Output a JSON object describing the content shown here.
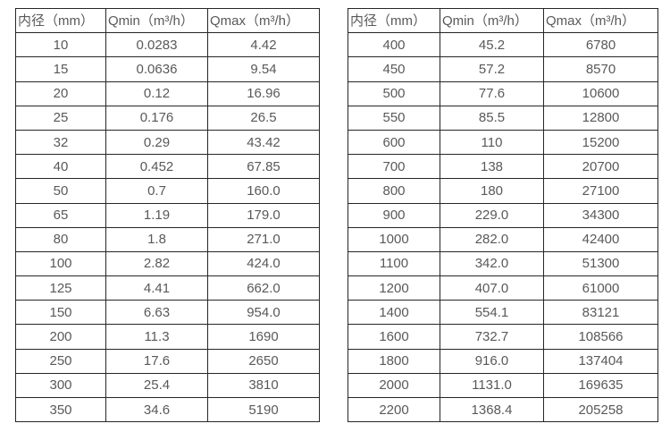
{
  "colors": {
    "text": "#595959",
    "border": "#262626",
    "background": "#ffffff"
  },
  "table_left": {
    "headers": [
      "内径（mm）",
      "Qmin（m³/h）",
      "Qmax（m³/h）"
    ],
    "rows": [
      [
        "10",
        "0.0283",
        "4.42"
      ],
      [
        "15",
        "0.0636",
        "9.54"
      ],
      [
        "20",
        "0.12",
        "16.96"
      ],
      [
        "25",
        "0.176",
        "26.5"
      ],
      [
        "32",
        "0.29",
        "43.42"
      ],
      [
        "40",
        "0.452",
        "67.85"
      ],
      [
        "50",
        "0.7",
        "160.0"
      ],
      [
        "65",
        "1.19",
        "179.0"
      ],
      [
        "80",
        "1.8",
        "271.0"
      ],
      [
        "100",
        "2.82",
        "424.0"
      ],
      [
        "125",
        "4.41",
        "662.0"
      ],
      [
        "150",
        "6.63",
        "954.0"
      ],
      [
        "200",
        "11.3",
        "1690"
      ],
      [
        "250",
        "17.6",
        "2650"
      ],
      [
        "300",
        "25.4",
        "3810"
      ],
      [
        "350",
        "34.6",
        "5190"
      ]
    ]
  },
  "table_right": {
    "headers": [
      "内径（mm）",
      "Qmin（m³/h）",
      "Qmax（m³/h）"
    ],
    "rows": [
      [
        "400",
        "45.2",
        "6780"
      ],
      [
        "450",
        "57.2",
        "8570"
      ],
      [
        "500",
        "77.6",
        "10600"
      ],
      [
        "550",
        "85.5",
        "12800"
      ],
      [
        "600",
        "110",
        "15200"
      ],
      [
        "700",
        "138",
        "20700"
      ],
      [
        "800",
        "180",
        "27100"
      ],
      [
        "900",
        "229.0",
        "34300"
      ],
      [
        "1000",
        "282.0",
        "42400"
      ],
      [
        "1100",
        "342.0",
        "51300"
      ],
      [
        "1200",
        "407.0",
        "61000"
      ],
      [
        "1400",
        "554.1",
        "83121"
      ],
      [
        "1600",
        "732.7",
        "108566"
      ],
      [
        "1800",
        "916.0",
        "137404"
      ],
      [
        "2000",
        "1131.0",
        "169635"
      ],
      [
        "2200",
        "1368.4",
        "205258"
      ]
    ]
  }
}
